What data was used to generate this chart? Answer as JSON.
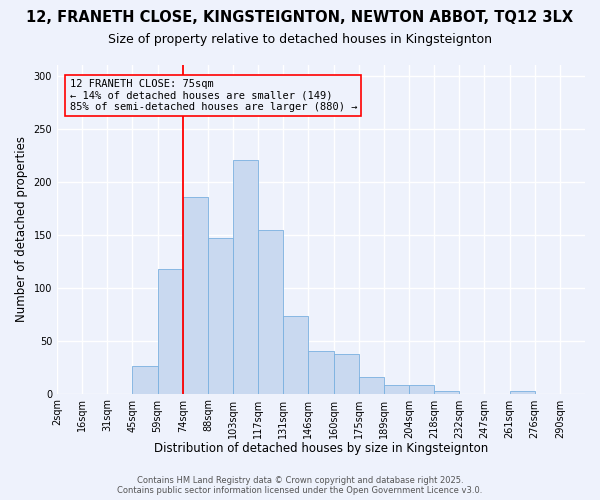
{
  "title1": "12, FRANETH CLOSE, KINGSTEIGNTON, NEWTON ABBOT, TQ12 3LX",
  "title2": "Size of property relative to detached houses in Kingsteignton",
  "xlabel": "Distribution of detached houses by size in Kingsteignton",
  "ylabel": "Number of detached properties",
  "bar_labels": [
    "2sqm",
    "16sqm",
    "31sqm",
    "45sqm",
    "59sqm",
    "74sqm",
    "88sqm",
    "103sqm",
    "117sqm",
    "131sqm",
    "146sqm",
    "160sqm",
    "175sqm",
    "189sqm",
    "204sqm",
    "218sqm",
    "232sqm",
    "247sqm",
    "261sqm",
    "276sqm",
    "290sqm"
  ],
  "bar_values": [
    0,
    0,
    0,
    26,
    118,
    185,
    147,
    220,
    154,
    73,
    40,
    37,
    16,
    8,
    8,
    2,
    0,
    0,
    2,
    0,
    0
  ],
  "bar_color": "#c9d9f0",
  "bar_edge_color": "#7ab0e0",
  "vline_x_idx": 5,
  "vline_color": "red",
  "annotation_title": "12 FRANETH CLOSE: 75sqm",
  "annotation_line1": "← 14% of detached houses are smaller (149)",
  "annotation_line2": "85% of semi-detached houses are larger (880) →",
  "ylim": [
    0,
    310
  ],
  "yticks": [
    0,
    50,
    100,
    150,
    200,
    250,
    300
  ],
  "footer1": "Contains HM Land Registry data © Crown copyright and database right 2025.",
  "footer2": "Contains public sector information licensed under the Open Government Licence v3.0.",
  "bg_color": "#eef2fc",
  "grid_color": "white",
  "title1_fontsize": 10.5,
  "title2_fontsize": 9,
  "axis_label_fontsize": 8.5,
  "tick_fontsize": 7,
  "annotation_fontsize": 7.5,
  "footer_fontsize": 6.0
}
